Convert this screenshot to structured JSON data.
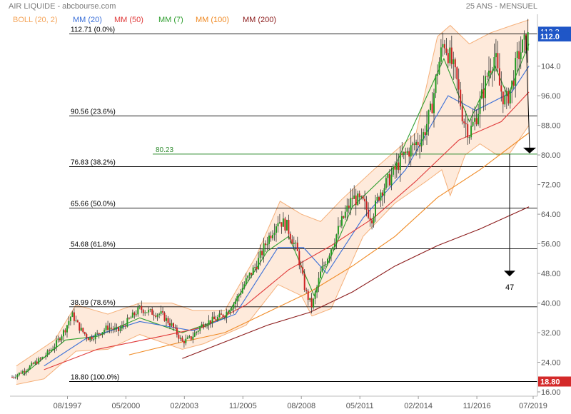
{
  "header": {
    "title": "AIR LIQUIDE - abcbourse.com",
    "period": "25 ANS - MENSUEL"
  },
  "legend": [
    {
      "label": "BOLL (20, 2)",
      "color": "#f5a55a"
    },
    {
      "label": "MM (20)",
      "color": "#3a6fd8"
    },
    {
      "label": "MM (50)",
      "color": "#e03a3a"
    },
    {
      "label": "MM (7)",
      "color": "#2e9e2e"
    },
    {
      "label": "MM (100)",
      "color": "#f08a24"
    },
    {
      "label": "MM (200)",
      "color": "#8b1a1a"
    }
  ],
  "chart_data": {
    "type": "candlestick",
    "title": "AIR LIQUIDE - abcbourse.com",
    "subtitle": "25 ANS - MENSUEL",
    "ylim": [
      16,
      118
    ],
    "x_ticks": [
      {
        "label": "08/1997",
        "year": 1997.6
      },
      {
        "label": "05/2000",
        "year": 2000.35
      },
      {
        "label": "02/2003",
        "year": 2003.1
      },
      {
        "label": "11/2005",
        "year": 2005.85
      },
      {
        "label": "08/2008",
        "year": 2008.6
      },
      {
        "label": "05/2011",
        "year": 2011.35
      },
      {
        "label": "02/2014",
        "year": 2014.1
      },
      {
        "label": "11/2016",
        "year": 2016.85
      },
      {
        "label": "07/2019",
        "year": 2019.5
      }
    ],
    "y_ticks": [
      "16.00",
      "24.00",
      "32.00",
      "40.00",
      "48.00",
      "56.00",
      "64.00",
      "72.00",
      "80.00",
      "88.00",
      "96.00",
      "104.0"
    ],
    "last_price": "112.0",
    "last_price_top_partial": "113.3",
    "low_price": "18.80",
    "fibonacci_levels": [
      {
        "value": 112.71,
        "label": "112.71  (0.0%)"
      },
      {
        "value": 90.56,
        "label": "90.56  (23.6%)"
      },
      {
        "value": 76.83,
        "label": "76.83  (38.2%)"
      },
      {
        "value": 65.66,
        "label": "65.66  (50.0%)"
      },
      {
        "value": 54.68,
        "label": "54.68  (61.8%)"
      },
      {
        "value": 38.99,
        "label": "38.99  (78.6%)"
      },
      {
        "value": 18.8,
        "label": "18.80  (100.0%)"
      }
    ],
    "support_line": {
      "value": 80.23,
      "label": "80.23",
      "color": "#2e8b2e"
    },
    "target_annotation": {
      "label": "47",
      "value": 47
    },
    "price_path": [
      [
        1995.0,
        20.0
      ],
      [
        1995.5,
        21.5
      ],
      [
        1996.0,
        23.5
      ],
      [
        1996.5,
        25.5
      ],
      [
        1997.0,
        28.5
      ],
      [
        1997.5,
        33.0
      ],
      [
        1997.8,
        37.0
      ],
      [
        1998.2,
        33.0
      ],
      [
        1998.6,
        30.5
      ],
      [
        1999.0,
        31.5
      ],
      [
        1999.5,
        33.5
      ],
      [
        2000.0,
        32.5
      ],
      [
        2000.5,
        35.5
      ],
      [
        2001.0,
        38.5
      ],
      [
        2001.5,
        37.5
      ],
      [
        2002.0,
        37.0
      ],
      [
        2002.5,
        34.0
      ],
      [
        2003.0,
        29.5
      ],
      [
        2003.4,
        30.5
      ],
      [
        2004.0,
        34.5
      ],
      [
        2004.5,
        35.5
      ],
      [
        2005.0,
        37.0
      ],
      [
        2005.5,
        40.5
      ],
      [
        2006.0,
        46.0
      ],
      [
        2006.5,
        50.5
      ],
      [
        2007.0,
        57.0
      ],
      [
        2007.5,
        62.5
      ],
      [
        2007.9,
        61.0
      ],
      [
        2008.4,
        54.0
      ],
      [
        2008.8,
        43.0
      ],
      [
        2009.1,
        39.0
      ],
      [
        2009.5,
        48.0
      ],
      [
        2010.0,
        55.0
      ],
      [
        2010.5,
        62.0
      ],
      [
        2011.0,
        68.5
      ],
      [
        2011.5,
        67.0
      ],
      [
        2011.9,
        63.0
      ],
      [
        2012.3,
        70.0
      ],
      [
        2012.8,
        74.0
      ],
      [
        2013.3,
        79.0
      ],
      [
        2013.8,
        82.0
      ],
      [
        2014.3,
        85.0
      ],
      [
        2014.7,
        92.0
      ],
      [
        2015.0,
        103.0
      ],
      [
        2015.3,
        111.0
      ],
      [
        2015.6,
        106.0
      ],
      [
        2015.9,
        100.0
      ],
      [
        2016.2,
        90.0
      ],
      [
        2016.5,
        86.0
      ],
      [
        2016.8,
        90.0
      ],
      [
        2017.1,
        96.0
      ],
      [
        2017.4,
        103.0
      ],
      [
        2017.7,
        107.0
      ],
      [
        2017.9,
        99.0
      ],
      [
        2018.2,
        94.0
      ],
      [
        2018.5,
        99.0
      ],
      [
        2018.8,
        107.0
      ],
      [
        2019.1,
        110.0
      ],
      [
        2019.3,
        112.0
      ]
    ],
    "moving_averages": {
      "MM (7)": [
        [
          1995.5,
          20.5
        ],
        [
          1997.5,
          30.0
        ],
        [
          1999.0,
          31.0
        ],
        [
          2001.0,
          36.0
        ],
        [
          2003.0,
          32.0
        ],
        [
          2005.0,
          36.0
        ],
        [
          2007.0,
          54.0
        ],
        [
          2008.0,
          58.0
        ],
        [
          2009.2,
          42.0
        ],
        [
          2011.0,
          66.0
        ],
        [
          2013.0,
          77.0
        ],
        [
          2015.3,
          106.0
        ],
        [
          2016.5,
          89.0
        ],
        [
          2017.7,
          104.0
        ],
        [
          2018.3,
          96.0
        ],
        [
          2019.3,
          110.0
        ]
      ],
      "MM (20)": [
        [
          1996.5,
          23.0
        ],
        [
          1998.5,
          30.5
        ],
        [
          2001.0,
          35.0
        ],
        [
          2003.5,
          32.5
        ],
        [
          2005.5,
          37.0
        ],
        [
          2007.5,
          55.0
        ],
        [
          2008.7,
          55.0
        ],
        [
          2009.8,
          48.0
        ],
        [
          2011.5,
          63.0
        ],
        [
          2013.5,
          76.0
        ],
        [
          2015.5,
          96.0
        ],
        [
          2016.8,
          92.0
        ],
        [
          2018.5,
          97.0
        ],
        [
          2019.3,
          104.0
        ]
      ],
      "MM (50)": [
        [
          1996.5,
          22.0
        ],
        [
          1999.0,
          27.5
        ],
        [
          2002.0,
          31.0
        ],
        [
          2004.0,
          33.5
        ],
        [
          2006.0,
          39.5
        ],
        [
          2008.0,
          49.0
        ],
        [
          2010.0,
          55.5
        ],
        [
          2012.0,
          63.0
        ],
        [
          2014.0,
          73.0
        ],
        [
          2016.0,
          84.0
        ],
        [
          2018.0,
          89.0
        ],
        [
          2019.3,
          97.0
        ]
      ],
      "MM (100)": [
        [
          2000.5,
          26.0
        ],
        [
          2003.0,
          29.5
        ],
        [
          2005.0,
          32.0
        ],
        [
          2007.0,
          37.5
        ],
        [
          2009.0,
          43.0
        ],
        [
          2011.0,
          50.0
        ],
        [
          2013.0,
          58.0
        ],
        [
          2015.0,
          68.5
        ],
        [
          2017.0,
          76.0
        ],
        [
          2019.3,
          86.0
        ]
      ],
      "MM (200)": [
        [
          2003.0,
          25.0
        ],
        [
          2005.0,
          29.5
        ],
        [
          2007.0,
          34.0
        ],
        [
          2009.0,
          37.5
        ],
        [
          2011.0,
          43.0
        ],
        [
          2013.0,
          50.0
        ],
        [
          2015.0,
          55.5
        ],
        [
          2017.0,
          60.0
        ],
        [
          2019.3,
          66.0
        ]
      ]
    },
    "bollinger_20_2": {
      "upper": [
        [
          1995.2,
          23.0
        ],
        [
          1997.0,
          30.0
        ],
        [
          1998.0,
          39.5
        ],
        [
          1999.5,
          37.0
        ],
        [
          2001.0,
          40.0
        ],
        [
          2002.5,
          40.0
        ],
        [
          2003.5,
          38.0
        ],
        [
          2005.0,
          38.0
        ],
        [
          2006.5,
          53.0
        ],
        [
          2007.6,
          67.5
        ],
        [
          2008.6,
          64.0
        ],
        [
          2009.5,
          62.0
        ],
        [
          2010.5,
          68.0
        ],
        [
          2012.0,
          76.0
        ],
        [
          2014.0,
          86.0
        ],
        [
          2015.0,
          112.0
        ],
        [
          2015.6,
          115.0
        ],
        [
          2016.5,
          110.0
        ],
        [
          2017.5,
          113.0
        ],
        [
          2018.5,
          115.0
        ],
        [
          2019.3,
          116.5
        ]
      ],
      "lower": [
        [
          1995.2,
          18.0
        ],
        [
          1996.5,
          19.5
        ],
        [
          1998.0,
          27.0
        ],
        [
          1999.5,
          27.5
        ],
        [
          2001.0,
          31.5
        ],
        [
          2003.0,
          27.5
        ],
        [
          2004.0,
          29.0
        ],
        [
          2006.0,
          34.0
        ],
        [
          2007.5,
          45.0
        ],
        [
          2008.6,
          42.0
        ],
        [
          2009.1,
          36.5
        ],
        [
          2010.0,
          38.5
        ],
        [
          2011.5,
          58.0
        ],
        [
          2013.0,
          67.0
        ],
        [
          2014.5,
          73.0
        ],
        [
          2015.2,
          76.0
        ],
        [
          2015.6,
          69.0
        ],
        [
          2016.3,
          80.0
        ],
        [
          2017.0,
          83.0
        ],
        [
          2017.8,
          80.0
        ],
        [
          2018.4,
          80.5
        ],
        [
          2019.3,
          88.0
        ]
      ]
    },
    "grid": false
  }
}
